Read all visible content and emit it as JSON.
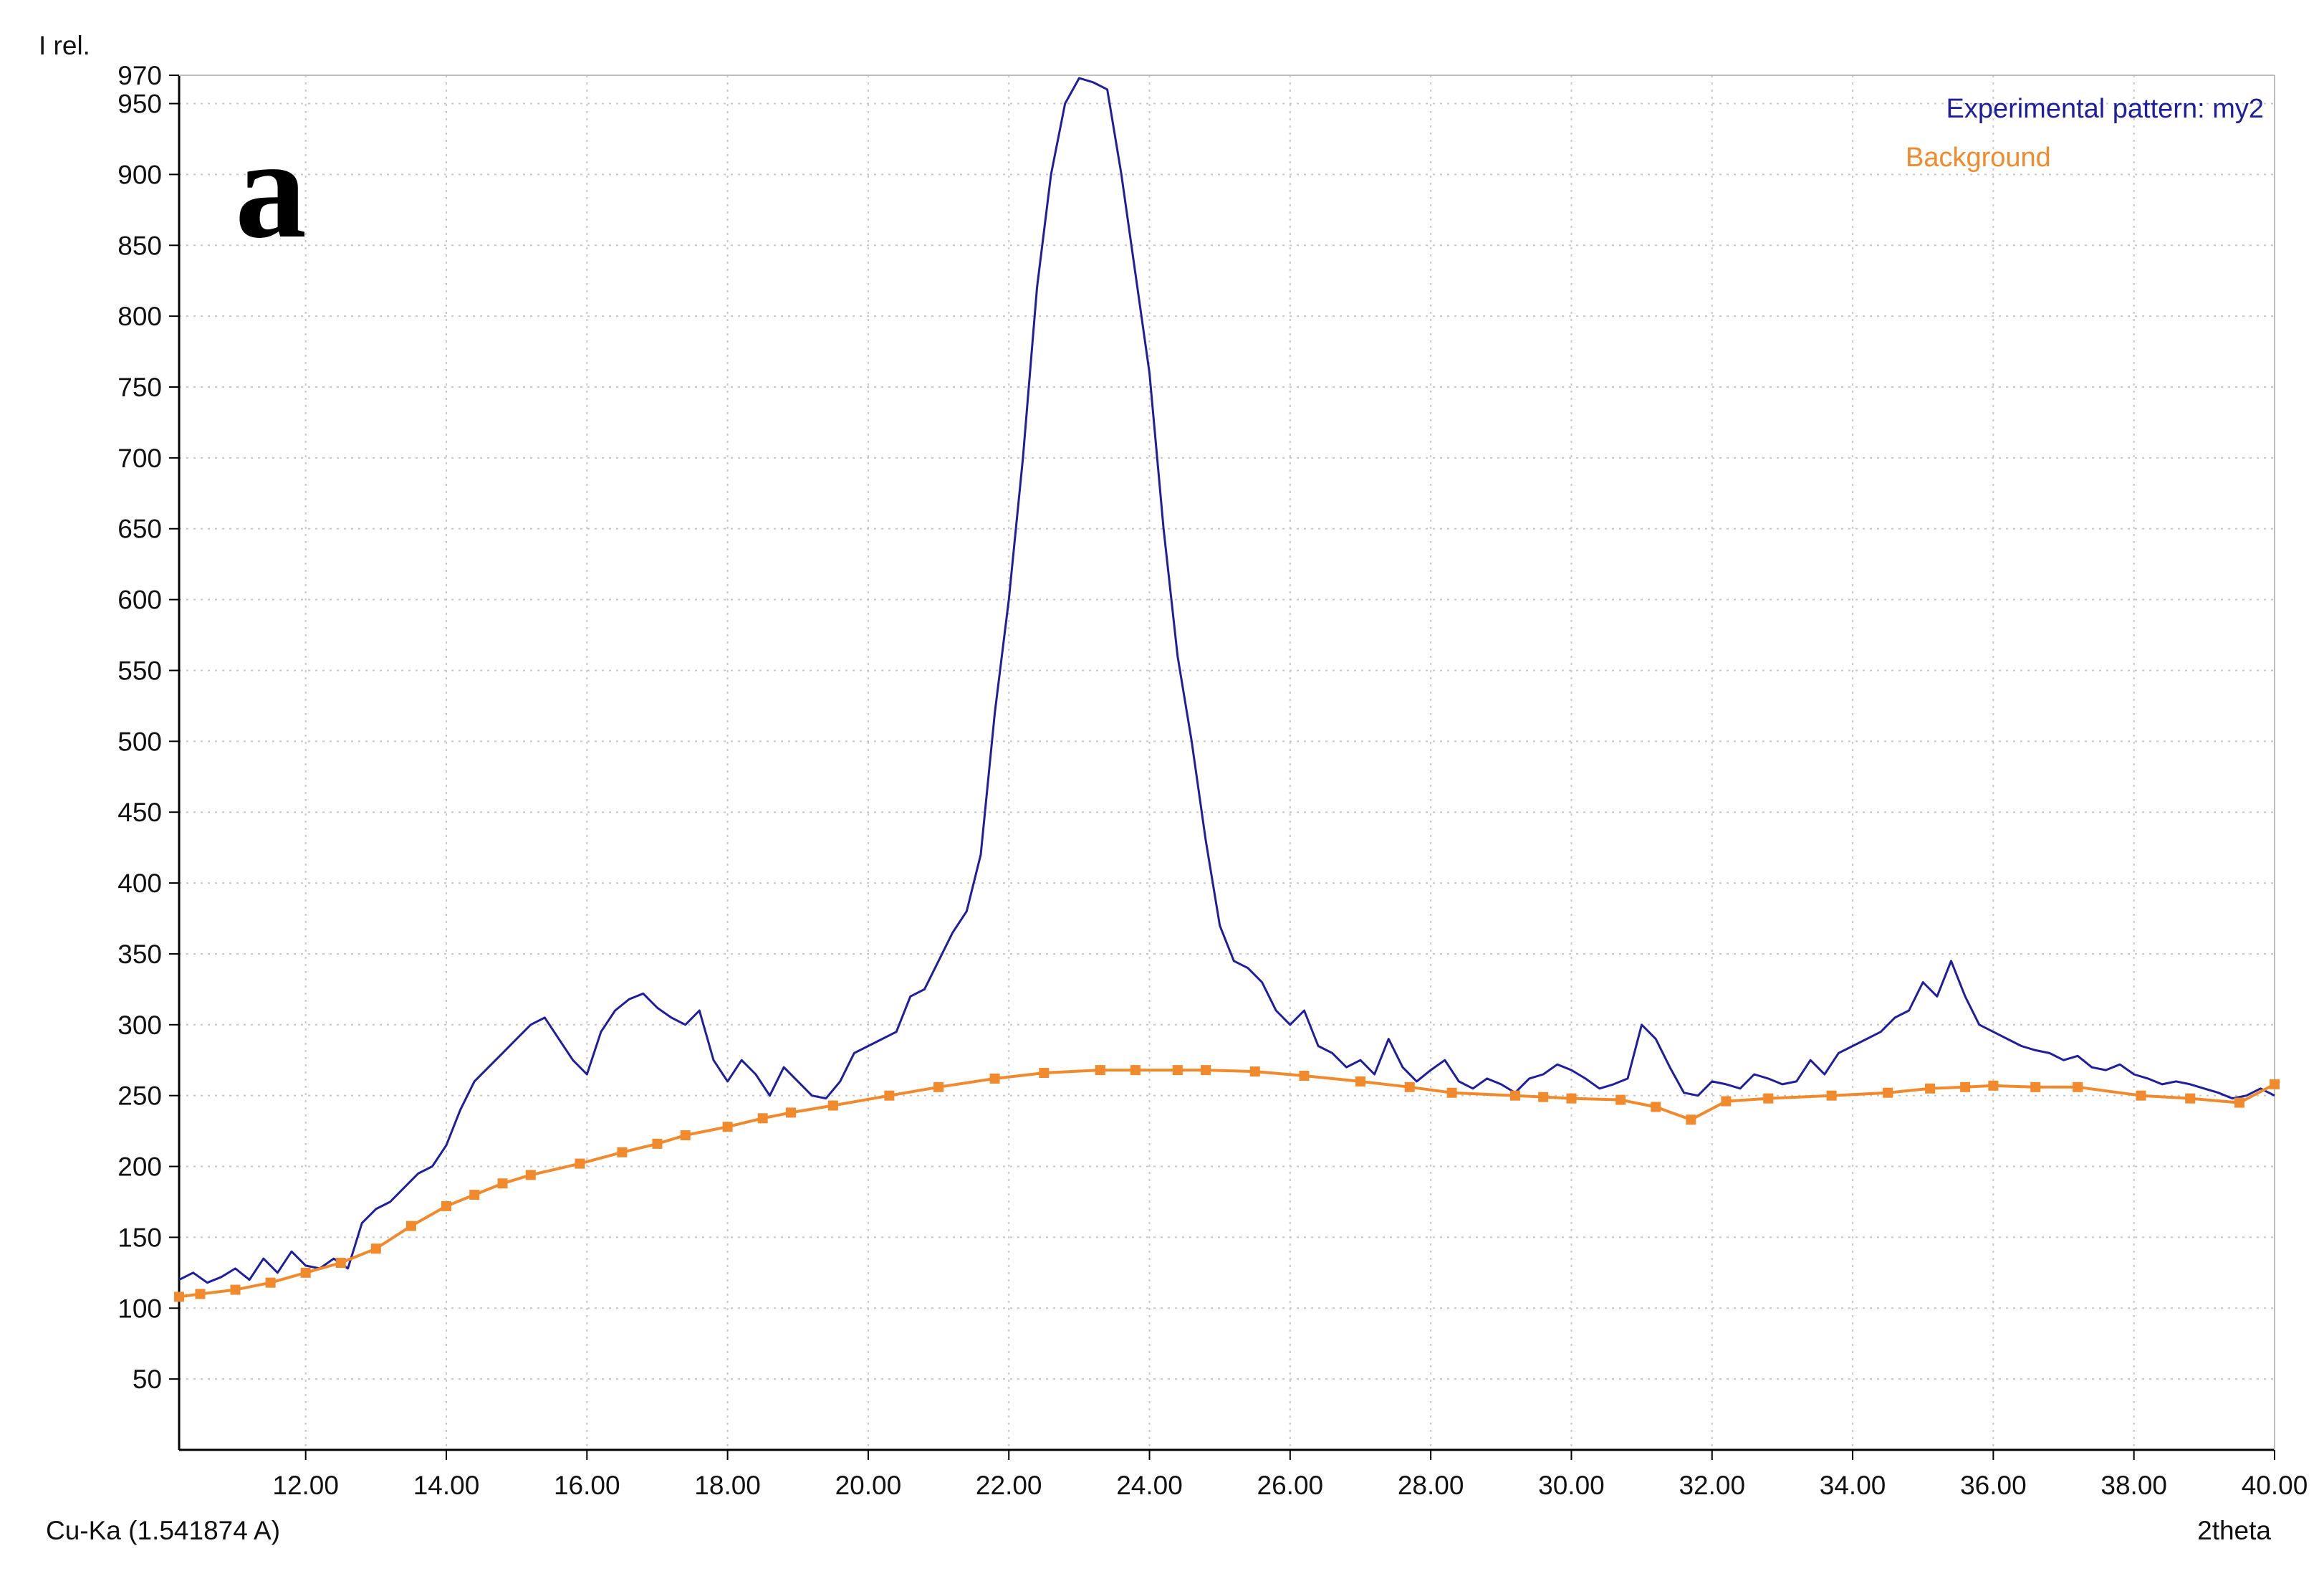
{
  "panel_label": "a",
  "footer": {
    "source_label": "Cu-Ka (1.541874 A)"
  },
  "chart_data": {
    "type": "line",
    "ylabel": "I rel.",
    "xlabel": "2theta",
    "xlim": [
      10.2,
      40.0
    ],
    "ylim": [
      0,
      970
    ],
    "x_ticks": [
      "12.00",
      "14.00",
      "16.00",
      "18.00",
      "20.00",
      "22.00",
      "24.00",
      "26.00",
      "28.00",
      "30.00",
      "32.00",
      "34.00",
      "36.00",
      "38.00",
      "40.00"
    ],
    "y_ticks": [
      "50",
      "100",
      "150",
      "200",
      "250",
      "300",
      "350",
      "400",
      "450",
      "500",
      "550",
      "600",
      "650",
      "700",
      "750",
      "800",
      "850",
      "900",
      "950",
      "970"
    ],
    "grid": true,
    "legend_position": "top-right",
    "series": [
      {
        "name": "Experimental pattern: my2",
        "color": "#1f1f9e",
        "x": [
          10.2,
          10.4,
          10.6,
          10.8,
          11.0,
          11.2,
          11.4,
          11.6,
          11.8,
          12.0,
          12.2,
          12.4,
          12.6,
          12.8,
          13.0,
          13.2,
          13.4,
          13.6,
          13.8,
          14.0,
          14.2,
          14.4,
          14.6,
          14.8,
          15.0,
          15.2,
          15.4,
          15.6,
          15.8,
          16.0,
          16.2,
          16.4,
          16.6,
          16.8,
          17.0,
          17.2,
          17.4,
          17.6,
          17.8,
          18.0,
          18.2,
          18.4,
          18.6,
          18.8,
          19.0,
          19.2,
          19.4,
          19.6,
          19.8,
          20.0,
          20.2,
          20.4,
          20.6,
          20.8,
          21.0,
          21.2,
          21.4,
          21.6,
          21.8,
          22.0,
          22.2,
          22.4,
          22.6,
          22.8,
          23.0,
          23.2,
          23.4,
          23.6,
          23.8,
          24.0,
          24.2,
          24.4,
          24.6,
          24.8,
          25.0,
          25.2,
          25.4,
          25.6,
          25.8,
          26.0,
          26.2,
          26.4,
          26.6,
          26.8,
          27.0,
          27.2,
          27.4,
          27.6,
          27.8,
          28.0,
          28.2,
          28.4,
          28.6,
          28.8,
          29.0,
          29.2,
          29.4,
          29.6,
          29.8,
          30.0,
          30.2,
          30.4,
          30.6,
          30.8,
          31.0,
          31.2,
          31.4,
          31.6,
          31.8,
          32.0,
          32.2,
          32.4,
          32.6,
          32.8,
          33.0,
          33.2,
          33.4,
          33.6,
          33.8,
          34.0,
          34.2,
          34.4,
          34.6,
          34.8,
          35.0,
          35.2,
          35.4,
          35.6,
          35.8,
          36.0,
          36.2,
          36.4,
          36.6,
          36.8,
          37.0,
          37.2,
          37.4,
          37.6,
          37.8,
          38.0,
          38.2,
          38.4,
          38.6,
          38.8,
          39.0,
          39.2,
          39.4,
          39.6,
          39.8,
          40.0
        ],
        "y": [
          120,
          125,
          118,
          122,
          128,
          120,
          135,
          125,
          140,
          130,
          128,
          135,
          128,
          160,
          170,
          175,
          185,
          195,
          200,
          215,
          240,
          260,
          270,
          280,
          290,
          300,
          305,
          290,
          275,
          265,
          295,
          310,
          318,
          322,
          312,
          305,
          300,
          310,
          275,
          260,
          275,
          265,
          250,
          270,
          260,
          250,
          248,
          260,
          280,
          285,
          290,
          295,
          320,
          325,
          345,
          365,
          380,
          420,
          520,
          600,
          700,
          820,
          900,
          950,
          968,
          965,
          960,
          900,
          830,
          760,
          650,
          560,
          500,
          430,
          370,
          345,
          340,
          330,
          310,
          300,
          310,
          285,
          280,
          270,
          275,
          265,
          290,
          270,
          260,
          268,
          275,
          260,
          255,
          262,
          258,
          252,
          262,
          265,
          272,
          268,
          262,
          255,
          258,
          262,
          300,
          290,
          270,
          252,
          250,
          260,
          258,
          255,
          265,
          262,
          258,
          260,
          275,
          265,
          280,
          285,
          290,
          295,
          305,
          310,
          330,
          320,
          345,
          320,
          300,
          295,
          290,
          285,
          282,
          280,
          275,
          278,
          270,
          268,
          272,
          265,
          262,
          258,
          260,
          258,
          255,
          252,
          248,
          250,
          255,
          250
        ]
      },
      {
        "name": "Background",
        "color": "#f08a2c",
        "x": [
          10.2,
          10.5,
          11.0,
          11.5,
          12.0,
          12.5,
          13.0,
          13.5,
          14.0,
          14.4,
          14.8,
          15.2,
          15.9,
          16.5,
          17.0,
          17.4,
          18.0,
          18.5,
          18.9,
          19.5,
          20.3,
          21.0,
          21.8,
          22.5,
          23.3,
          23.8,
          24.4,
          24.8,
          25.5,
          26.2,
          27.0,
          27.7,
          28.3,
          29.2,
          29.6,
          30.0,
          30.7,
          31.2,
          31.7,
          32.2,
          32.8,
          33.7,
          34.5,
          35.1,
          35.6,
          36.0,
          36.6,
          37.2,
          38.1,
          38.8,
          39.5,
          40.0
        ],
        "y": [
          108,
          110,
          113,
          118,
          125,
          132,
          142,
          158,
          172,
          180,
          188,
          194,
          202,
          210,
          216,
          222,
          228,
          234,
          238,
          243,
          250,
          256,
          262,
          266,
          268,
          268,
          268,
          268,
          267,
          264,
          260,
          256,
          252,
          250,
          249,
          248,
          247,
          242,
          233,
          246,
          248,
          250,
          252,
          255,
          256,
          257,
          256,
          256,
          250,
          248,
          245,
          258
        ]
      }
    ]
  }
}
